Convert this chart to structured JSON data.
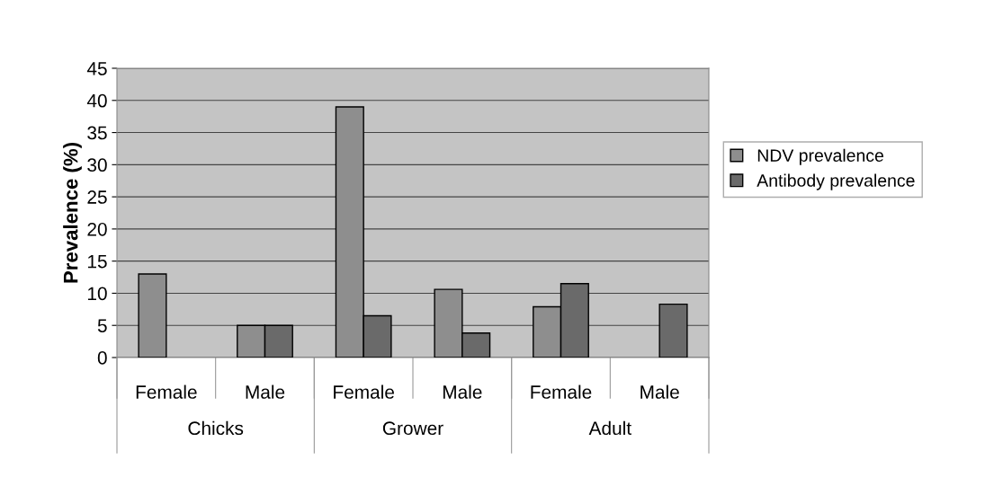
{
  "chart_data": {
    "type": "bar",
    "ylabel": "Prevalence (%)",
    "categories": [
      "Female",
      "Male",
      "Female",
      "Male",
      "Female",
      "Male"
    ],
    "annotations": [
      "Chicks",
      "Grower",
      "Adult"
    ],
    "series": [
      {
        "name": "NDV prevalence",
        "color": "#8e8e8e",
        "values": [
          13,
          5,
          39,
          10.6,
          7.9,
          null
        ]
      },
      {
        "name": "Antibody prevalence",
        "color": "#6a6a6a",
        "values": [
          null,
          5,
          6.5,
          3.8,
          11.5,
          8.3
        ]
      }
    ],
    "ylim": [
      0,
      45
    ],
    "yticks": [
      0,
      5,
      10,
      15,
      20,
      25,
      30,
      35,
      40,
      45
    ],
    "grid": "y",
    "legend": "right"
  }
}
